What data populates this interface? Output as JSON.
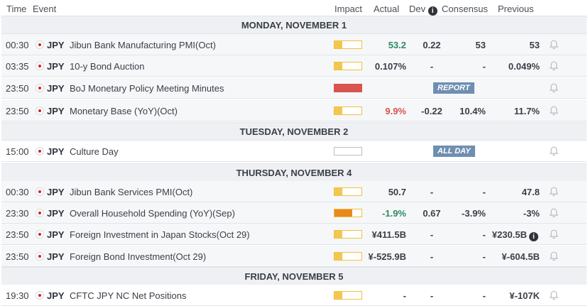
{
  "columns": {
    "time": "Time",
    "event": "Event",
    "impact": "Impact",
    "actual": "Actual",
    "dev": "Dev",
    "consensus": "Consensus",
    "previous": "Previous"
  },
  "colors": {
    "positive": "#2e8b63",
    "negative": "#d9534f",
    "neutral": "#3a3f47",
    "impact_low": "#f3c74f",
    "impact_medium": "#e68a1f",
    "impact_high": "#d9534f",
    "tag": "#6f8fb1"
  },
  "days": [
    {
      "label": "MONDAY, NOVEMBER 1",
      "events": [
        {
          "time": "00:30",
          "currency": "JPY",
          "name": "Jibun Bank Manufacturing PMI(Oct)",
          "impact": "low",
          "impact_level": 0.3,
          "actual": "53.2",
          "actual_tone": "positive",
          "dev": "0.22",
          "consensus": "53",
          "previous": "53"
        },
        {
          "time": "03:35",
          "currency": "JPY",
          "name": "10-y Bond Auction",
          "impact": "low",
          "impact_level": 0.3,
          "actual": "0.107%",
          "actual_tone": "neutral",
          "dev": "-",
          "consensus": "-",
          "previous": "0.049%"
        },
        {
          "time": "23:50",
          "currency": "JPY",
          "name": "BoJ Monetary Policy Meeting Minutes",
          "impact": "high",
          "impact_level": 1.0,
          "tag": "REPORT"
        },
        {
          "time": "23:50",
          "currency": "JPY",
          "name": "Monetary Base (YoY)(Oct)",
          "impact": "low",
          "impact_level": 0.3,
          "actual": "9.9%",
          "actual_tone": "negative",
          "dev": "-0.22",
          "consensus": "10.4%",
          "previous": "11.7%"
        }
      ]
    },
    {
      "label": "TUESDAY, NOVEMBER 2",
      "events": [
        {
          "time": "15:00",
          "currency": "JPY",
          "name": "Culture Day",
          "impact": "none",
          "impact_level": 0,
          "tag": "ALL DAY"
        }
      ]
    },
    {
      "label": "THURSDAY, NOVEMBER 4",
      "events": [
        {
          "time": "00:30",
          "currency": "JPY",
          "name": "Jibun Bank Services PMI(Oct)",
          "impact": "low",
          "impact_level": 0.3,
          "actual": "50.7",
          "actual_tone": "neutral",
          "dev": "-",
          "consensus": "-",
          "previous": "47.8"
        },
        {
          "time": "23:30",
          "currency": "JPY",
          "name": "Overall Household Spending (YoY)(Sep)",
          "impact": "medium",
          "impact_level": 0.65,
          "actual": "-1.9%",
          "actual_tone": "positive",
          "dev": "0.67",
          "consensus": "-3.9%",
          "previous": "-3%"
        },
        {
          "time": "23:50",
          "currency": "JPY",
          "name": "Foreign Investment in Japan Stocks(Oct 29)",
          "impact": "low",
          "impact_level": 0.3,
          "actual": "¥411.5B",
          "actual_tone": "neutral",
          "dev": "-",
          "consensus": "-",
          "previous": "¥230.5B",
          "previous_info": true
        },
        {
          "time": "23:50",
          "currency": "JPY",
          "name": "Foreign Bond Investment(Oct 29)",
          "impact": "low",
          "impact_level": 0.3,
          "actual": "¥-525.9B",
          "actual_tone": "neutral",
          "dev": "-",
          "consensus": "-",
          "previous": "¥-604.5B"
        }
      ]
    },
    {
      "label": "FRIDAY, NOVEMBER 5",
      "events": [
        {
          "time": "19:30",
          "currency": "JPY",
          "name": "CFTC JPY NC Net Positions",
          "impact": "low",
          "impact_level": 0.3,
          "actual": "-",
          "actual_tone": "neutral",
          "dev": "-",
          "consensus": "-",
          "previous": "¥-107K"
        }
      ]
    }
  ]
}
